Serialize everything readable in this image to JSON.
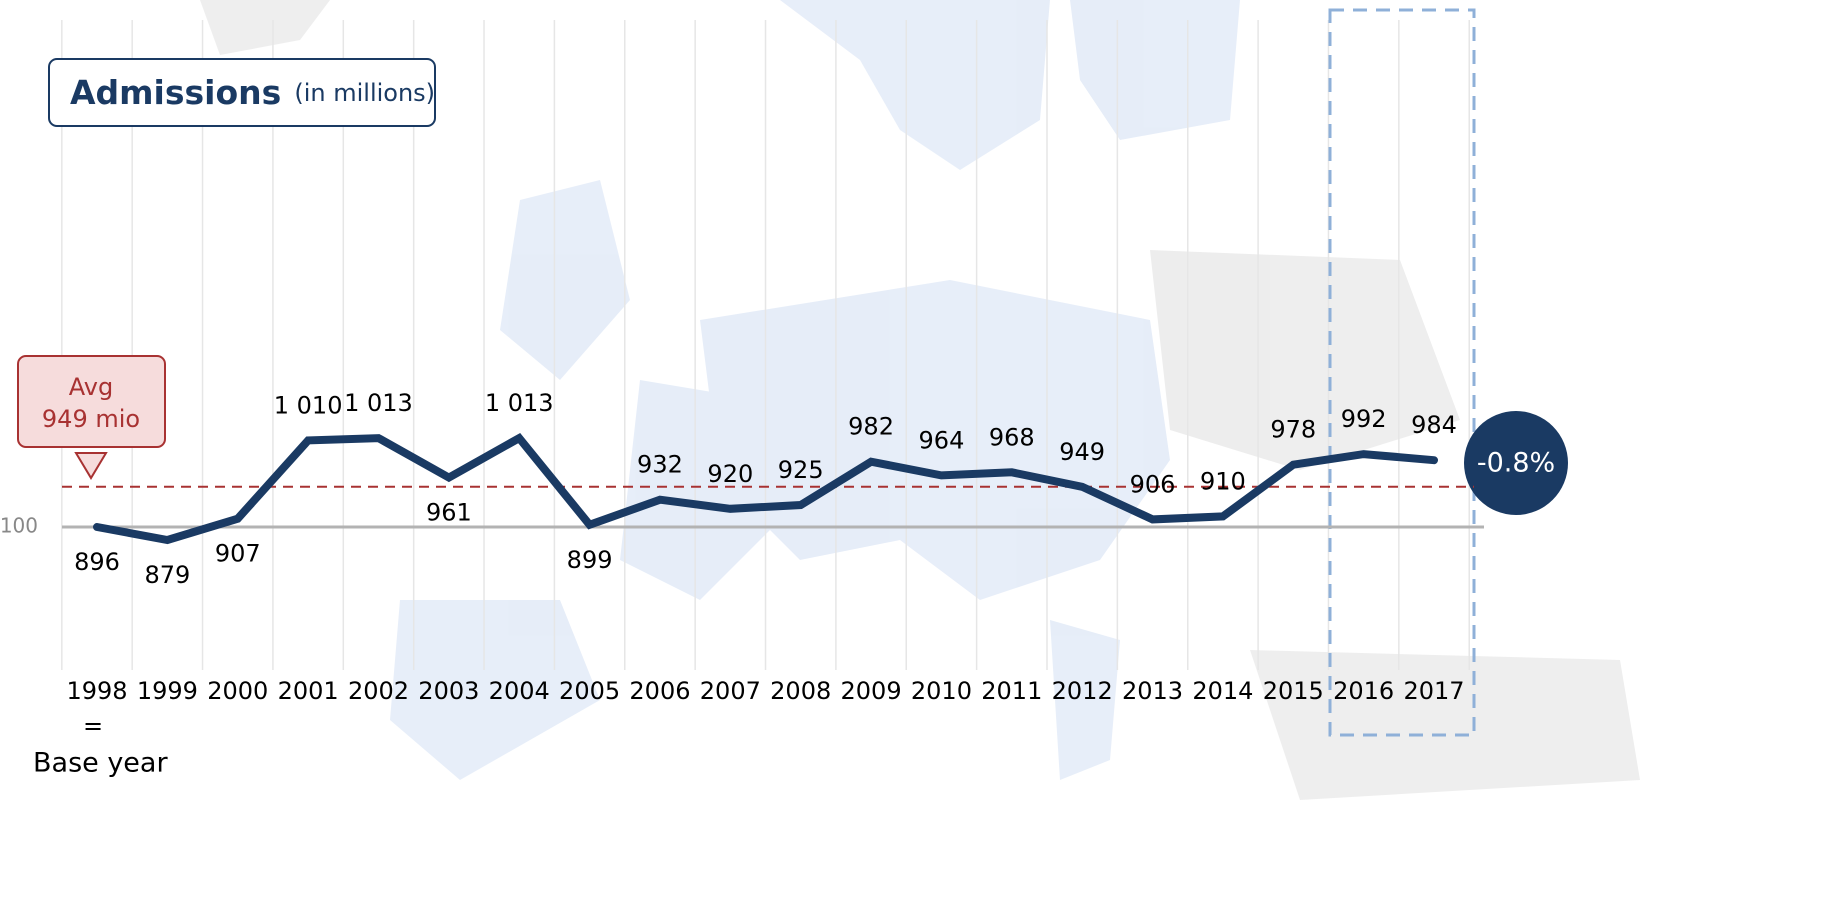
{
  "chart_data": {
    "type": "line",
    "title": "Admissions",
    "subtitle": "(in millions)",
    "categories": [
      "1998",
      "1999",
      "2000",
      "2001",
      "2002",
      "2003",
      "2004",
      "2005",
      "2006",
      "2007",
      "2008",
      "2009",
      "2010",
      "2011",
      "2012",
      "2013",
      "2014",
      "2015",
      "2016",
      "2017"
    ],
    "series": [
      {
        "name": "Admissions",
        "color": "#1a3a63",
        "values": [
          896,
          879,
          907,
          1010,
          1013,
          961,
          1013,
          899,
          932,
          920,
          925,
          982,
          964,
          968,
          949,
          906,
          910,
          978,
          992,
          984
        ],
        "value_labels": [
          "896",
          "879",
          "907",
          "1 010",
          "1 013",
          "961",
          "1 013",
          "899",
          "932",
          "920",
          "925",
          "982",
          "964",
          "968",
          "949",
          "906",
          "910",
          "978",
          "992",
          "984"
        ]
      }
    ],
    "ylim": [
      700,
      1550
    ],
    "yticks": [
      {
        "value": 896,
        "label": "100"
      }
    ],
    "average": {
      "value": 949,
      "label": [
        "Avg",
        "949 mio"
      ],
      "color": "#a83232"
    },
    "base_year_note": [
      "=",
      "Base year"
    ],
    "change_label": "-0.8%"
  }
}
